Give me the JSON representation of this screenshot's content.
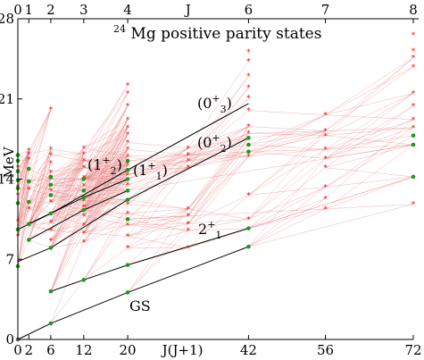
{
  "chart_data": {
    "type": "scatter",
    "title": "²⁴Mg positive parity states",
    "title_super": "24",
    "title_main": "Mg positive parity states",
    "ylabel": "MeV",
    "ylim": [
      0,
      28
    ],
    "y_ticks": [
      0,
      7,
      14,
      21,
      28
    ],
    "xlim": [
      0,
      72
    ],
    "x_bottom_ticks": [
      {
        "x": 0,
        "label": "0"
      },
      {
        "x": 2,
        "label": "2"
      },
      {
        "x": 6,
        "label": "6"
      },
      {
        "x": 12,
        "label": "12"
      },
      {
        "x": 20,
        "label": "20"
      },
      {
        "x": 42,
        "label": "42"
      },
      {
        "x": 56,
        "label": "56"
      },
      {
        "x": 72,
        "label": "72"
      }
    ],
    "x_bottom_axis_label": "J(J+1)",
    "x_bottom_axis_label_pos": 30,
    "x_top_ticks": [
      {
        "x": 0,
        "label": "0"
      },
      {
        "x": 2,
        "label": "1"
      },
      {
        "x": 6,
        "label": "2"
      },
      {
        "x": 12,
        "label": "3"
      },
      {
        "x": 20,
        "label": "4"
      },
      {
        "x": 42,
        "label": "6"
      },
      {
        "x": 56,
        "label": "7"
      },
      {
        "x": 72,
        "label": "8"
      }
    ],
    "x_top_axis_label": "J",
    "x_top_axis_label_pos": 31,
    "bands": [
      {
        "label": "GS",
        "sup": "",
        "sub": "",
        "points": [
          [
            0,
            0
          ],
          [
            6,
            1.4
          ],
          [
            20,
            4.1
          ],
          [
            42,
            8.1
          ]
        ]
      },
      {
        "label": "2",
        "sup": "+",
        "sub": "1",
        "points": [
          [
            6,
            4.2
          ],
          [
            12,
            5.2
          ],
          [
            20,
            6.5
          ],
          [
            42,
            9.7
          ]
        ]
      },
      {
        "label": "(0",
        "sup": "+",
        "sub": "2",
        "suffix": ")",
        "points": [
          [
            0,
            6.8
          ],
          [
            6,
            8.0
          ],
          [
            20,
            12.2
          ],
          [
            42,
            17.6
          ]
        ]
      },
      {
        "label": "(0",
        "sup": "+",
        "sub": "3",
        "suffix": ")",
        "points": [
          [
            0,
            9.6
          ],
          [
            6,
            11.0
          ],
          [
            20,
            14.8
          ],
          [
            42,
            20.6
          ]
        ]
      },
      {
        "label": "(1",
        "sup": "+",
        "sub": "1",
        "suffix": ")",
        "points": [
          [
            2,
            8.7
          ],
          [
            12,
            11.3
          ],
          [
            20,
            13.0
          ]
        ]
      },
      {
        "label": "(1",
        "sup": "+",
        "sub": "2",
        "suffix": ")",
        "points": [
          [
            2,
            10.1
          ],
          [
            12,
            12.4
          ],
          [
            20,
            14.0
          ]
        ]
      }
    ],
    "green_points": [
      [
        0,
        0
      ],
      [
        0,
        6.4
      ],
      [
        0,
        9.6
      ],
      [
        0,
        11.9
      ],
      [
        0,
        13.2
      ],
      [
        0,
        13.9
      ],
      [
        0,
        14.7
      ],
      [
        0,
        15.6
      ],
      [
        0,
        16.1
      ],
      [
        2,
        8.7
      ],
      [
        2,
        10.1
      ],
      [
        2,
        12.0
      ],
      [
        2,
        13.8
      ],
      [
        2,
        14.9
      ],
      [
        6,
        1.4
      ],
      [
        6,
        4.2
      ],
      [
        6,
        8.0
      ],
      [
        6,
        11.0
      ],
      [
        6,
        12.6
      ],
      [
        6,
        13.5
      ],
      [
        6,
        14.2
      ],
      [
        12,
        5.2
      ],
      [
        12,
        11.3
      ],
      [
        12,
        12.4
      ],
      [
        12,
        13.0
      ],
      [
        12,
        14.0
      ],
      [
        20,
        4.1
      ],
      [
        20,
        6.5
      ],
      [
        20,
        10.5
      ],
      [
        20,
        12.2
      ],
      [
        20,
        13.0
      ],
      [
        20,
        14.0
      ],
      [
        20,
        14.8
      ],
      [
        20,
        15.6
      ],
      [
        42,
        8.1
      ],
      [
        42,
        9.7
      ],
      [
        42,
        16.4
      ],
      [
        42,
        17.0
      ],
      [
        42,
        17.6
      ],
      [
        72,
        14.2
      ],
      [
        72,
        17.0
      ],
      [
        72,
        17.8
      ]
    ],
    "red_points": [
      [
        0,
        9.0
      ],
      [
        0,
        10.3
      ],
      [
        0,
        12.6
      ],
      [
        0,
        13.3
      ],
      [
        0,
        14.5
      ],
      [
        0,
        15.0
      ],
      [
        2,
        9.9
      ],
      [
        2,
        11.4
      ],
      [
        2,
        13.1
      ],
      [
        2,
        15.7
      ],
      [
        2,
        16.2
      ],
      [
        2,
        16.5
      ],
      [
        6,
        8.6
      ],
      [
        6,
        9.5
      ],
      [
        6,
        10.2
      ],
      [
        6,
        12.0
      ],
      [
        6,
        13.0
      ],
      [
        6,
        14.0
      ],
      [
        6,
        14.6
      ],
      [
        6,
        15.4
      ],
      [
        6,
        16.1
      ],
      [
        6,
        16.6
      ],
      [
        6,
        20.1
      ],
      [
        12,
        8.5
      ],
      [
        12,
        9.3
      ],
      [
        12,
        10.0
      ],
      [
        12,
        10.8
      ],
      [
        12,
        11.6
      ],
      [
        12,
        12.1
      ],
      [
        12,
        13.4
      ],
      [
        12,
        14.1
      ],
      [
        12,
        15.0
      ],
      [
        12,
        15.6
      ],
      [
        12,
        16.2
      ],
      [
        12,
        16.7
      ],
      [
        20,
        8.0
      ],
      [
        20,
        9.0
      ],
      [
        20,
        10.0
      ],
      [
        20,
        11.0
      ],
      [
        20,
        11.8
      ],
      [
        20,
        13.5
      ],
      [
        20,
        14.4
      ],
      [
        20,
        15.2
      ],
      [
        20,
        16.0
      ],
      [
        20,
        16.6
      ],
      [
        20,
        17.2
      ],
      [
        20,
        17.9
      ],
      [
        20,
        18.5
      ],
      [
        20,
        19.2
      ],
      [
        20,
        20.4
      ],
      [
        20,
        21.5
      ],
      [
        20,
        22.2
      ],
      [
        31,
        8.0
      ],
      [
        31,
        9.5
      ],
      [
        31,
        10.1
      ],
      [
        31,
        10.8
      ],
      [
        31,
        11.4
      ],
      [
        31,
        15.0
      ],
      [
        31,
        15.6
      ],
      [
        31,
        16.1
      ],
      [
        31,
        16.7
      ],
      [
        42,
        10.5
      ],
      [
        42,
        12.6
      ],
      [
        42,
        16.0
      ],
      [
        42,
        18.0
      ],
      [
        42,
        18.6
      ],
      [
        42,
        20.0
      ],
      [
        42,
        21.1
      ],
      [
        42,
        22.0
      ],
      [
        42,
        23.0
      ],
      [
        42,
        24.3
      ],
      [
        42,
        25.1
      ],
      [
        56,
        11.4
      ],
      [
        56,
        12.3
      ],
      [
        56,
        13.3
      ],
      [
        56,
        15.0
      ],
      [
        56,
        15.8
      ],
      [
        56,
        16.6
      ],
      [
        56,
        17.8
      ],
      [
        56,
        18.2
      ],
      [
        56,
        19.6
      ],
      [
        72,
        11.8
      ],
      [
        72,
        18.5
      ],
      [
        72,
        19.2
      ],
      [
        72,
        20.4
      ],
      [
        72,
        21.5
      ],
      [
        72,
        23.8
      ],
      [
        72,
        24.6
      ],
      [
        72,
        25.2
      ],
      [
        72,
        26.6
      ]
    ]
  }
}
